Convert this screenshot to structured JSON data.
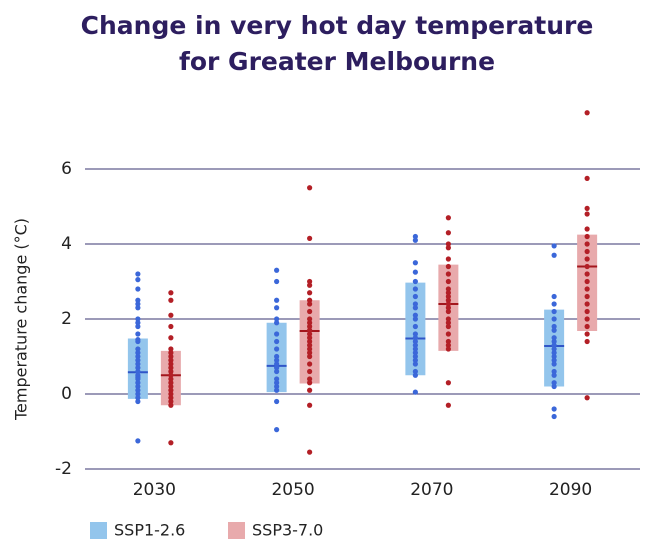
{
  "chart_data": {
    "type": "range-dot",
    "title": "Change in very hot day temperature for Greater Melbourne",
    "y_label": "Temperature change (°C)",
    "categories": [
      "2030",
      "2050",
      "2070",
      "2090"
    ],
    "ylim": [
      -2,
      7.6
    ],
    "yticks": [
      -2,
      0,
      2,
      4,
      6
    ],
    "grid": true,
    "series": [
      {
        "name": "SSP1-2.6",
        "color": "#3b67d9",
        "box_color": "#93c5ec",
        "median_color": "#2f55c8",
        "low": [
          -0.13,
          0.05,
          0.5,
          0.2
        ],
        "high": [
          1.48,
          1.9,
          2.97,
          2.25
        ],
        "median": [
          0.58,
          0.75,
          1.48,
          1.28
        ],
        "points": [
          [
            3.2,
            3.05,
            2.8,
            2.5,
            2.4,
            2.3,
            2.0,
            1.9,
            1.8,
            1.6,
            1.45,
            1.4,
            1.2,
            1.1,
            1.0,
            0.9,
            0.8,
            0.7,
            0.6,
            0.5,
            0.45,
            0.4,
            0.3,
            0.2,
            0.1,
            0.0,
            -0.1,
            -0.2,
            -1.25
          ],
          [
            3.3,
            3.0,
            2.5,
            2.3,
            2.0,
            1.9,
            1.6,
            1.4,
            1.2,
            1.0,
            0.9,
            0.8,
            0.7,
            0.6,
            0.4,
            0.3,
            0.2,
            0.1,
            -0.2,
            -0.95
          ],
          [
            4.2,
            4.1,
            3.5,
            3.25,
            3.0,
            2.8,
            2.6,
            2.4,
            2.3,
            2.1,
            2.0,
            1.8,
            1.6,
            1.5,
            1.4,
            1.3,
            1.2,
            1.1,
            1.0,
            0.9,
            0.8,
            0.6,
            0.5,
            0.05
          ],
          [
            3.95,
            3.7,
            2.6,
            2.4,
            2.2,
            2.0,
            1.8,
            1.7,
            1.5,
            1.4,
            1.3,
            1.2,
            1.1,
            1.0,
            0.9,
            0.8,
            0.6,
            0.5,
            0.3,
            0.2,
            -0.4,
            -0.6
          ]
        ]
      },
      {
        "name": "SSP3-7.0",
        "color": "#b31f26",
        "box_color": "#e8aaac",
        "median_color": "#a3161d",
        "low": [
          -0.3,
          0.28,
          1.15,
          1.68
        ],
        "high": [
          1.15,
          2.5,
          3.45,
          4.25
        ],
        "median": [
          0.5,
          1.68,
          2.4,
          3.4
        ],
        "points": [
          [
            2.7,
            2.5,
            2.1,
            1.8,
            1.5,
            1.2,
            1.1,
            1.0,
            0.9,
            0.8,
            0.7,
            0.6,
            0.5,
            0.4,
            0.3,
            0.2,
            0.1,
            0.0,
            -0.1,
            -0.2,
            -0.3,
            -1.3
          ],
          [
            5.5,
            4.15,
            3.0,
            2.9,
            2.7,
            2.5,
            2.4,
            2.2,
            2.0,
            1.9,
            1.8,
            1.7,
            1.6,
            1.5,
            1.4,
            1.3,
            1.2,
            1.1,
            1.0,
            0.8,
            0.6,
            0.4,
            0.3,
            0.1,
            -0.3,
            -1.55
          ],
          [
            4.7,
            4.3,
            4.0,
            3.9,
            3.6,
            3.4,
            3.2,
            3.0,
            2.8,
            2.7,
            2.6,
            2.5,
            2.4,
            2.3,
            2.2,
            2.0,
            1.9,
            1.8,
            1.6,
            1.4,
            1.3,
            1.2,
            0.3,
            -0.3
          ],
          [
            7.5,
            5.75,
            4.95,
            4.8,
            4.4,
            4.2,
            4.0,
            3.8,
            3.6,
            3.4,
            3.2,
            3.0,
            2.8,
            2.6,
            2.4,
            2.2,
            2.0,
            1.8,
            1.6,
            1.4,
            -0.1
          ]
        ]
      }
    ]
  }
}
